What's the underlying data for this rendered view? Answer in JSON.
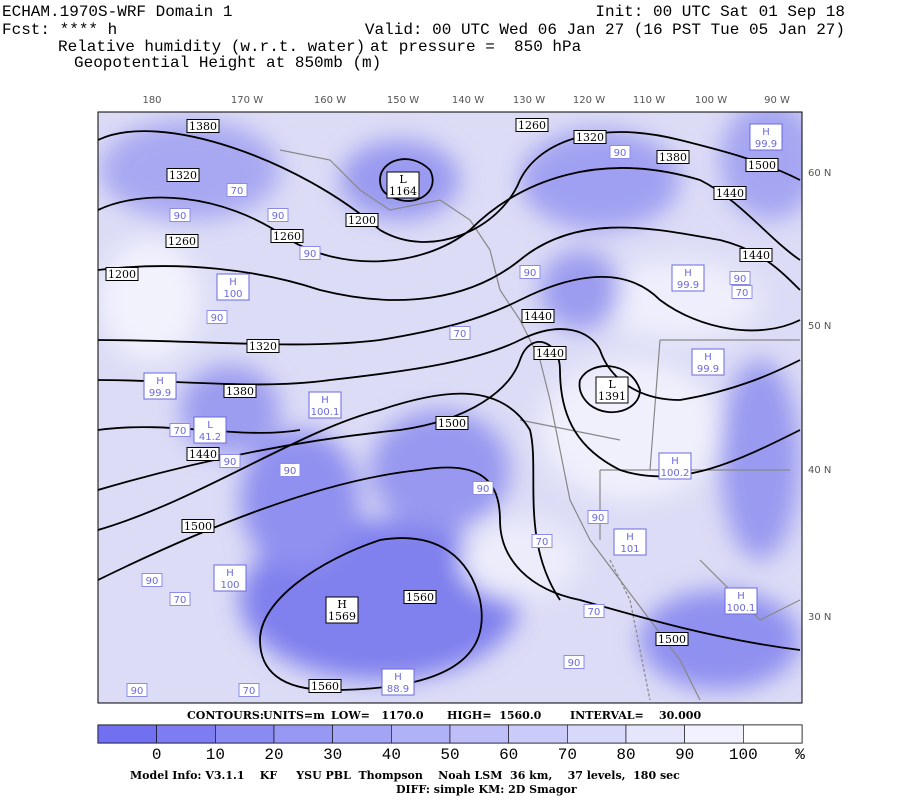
{
  "header": {
    "model": "ECHAM.1970S-WRF Domain 1",
    "init": "Init: 00 UTC Sat 01 Sep 18",
    "fcst": "Fcst: **** h",
    "valid": "Valid: 00 UTC Wed 06 Jan 27 (16 PST Tue 05 Jan 27)",
    "field1": "Relative humidity (w.r.t. water)",
    "pressure": "at pressure =  850 hPa",
    "field2": "Geopotential Height at 850mb (m)"
  },
  "map": {
    "longitudes": [
      "180",
      "170 W",
      "160 W",
      "150 W",
      "140 W",
      "130 W",
      "120 W",
      "110 W",
      "100 W",
      "90 W"
    ],
    "latitudes": [
      "60 N",
      "50 N",
      "40 N",
      "30 N"
    ],
    "contour_labels": [
      "1380",
      "1260",
      "1320",
      "1380",
      "1500",
      "1320",
      "1440",
      "1200",
      "1260",
      "1260",
      "1440",
      "1200",
      "1440",
      "1320",
      "1440",
      "1380",
      "1500",
      "1440",
      "1500",
      "1560",
      "1500",
      "1560"
    ],
    "extrema": [
      {
        "symbol": "L",
        "value": "1164"
      },
      {
        "symbol": "L",
        "value": "1391"
      },
      {
        "symbol": "H",
        "value": "1569"
      },
      {
        "symbol": "H",
        "value": "100"
      },
      {
        "symbol": "H",
        "value": "99.9"
      },
      {
        "symbol": "H",
        "value": "99.9"
      },
      {
        "symbol": "H",
        "value": "100.1"
      },
      {
        "symbol": "L",
        "value": "41.2"
      },
      {
        "symbol": "H",
        "value": "99.9"
      },
      {
        "symbol": "H",
        "value": "100.2"
      },
      {
        "symbol": "H",
        "value": "101"
      },
      {
        "symbol": "H",
        "value": "100"
      },
      {
        "symbol": "H",
        "value": "100.1"
      },
      {
        "symbol": "H",
        "value": "99.9"
      },
      {
        "symbol": "H",
        "value": "88.9"
      }
    ],
    "rh_labels": [
      "70",
      "90",
      "90",
      "90",
      "90",
      "70",
      "90",
      "90",
      "70",
      "90",
      "90",
      "90",
      "70",
      "90",
      "90",
      "70",
      "90",
      "70",
      "90",
      "70",
      "90",
      "70"
    ]
  },
  "colorbar": {
    "ticks": [
      "0",
      "10",
      "20",
      "30",
      "40",
      "50",
      "60",
      "70",
      "80",
      "90",
      "100"
    ],
    "unit": "%"
  },
  "footer": {
    "contours": "CONTOURS:",
    "units": "UNITS=m",
    "low": "LOW=   1170.0",
    "high": "HIGH=  1560.0",
    "interval": "INTERVAL=    30.000",
    "model_info": "Model Info: V3.1.1    KF     YSU PBL  Thompson    Noah LSM  36 km,    37 levels,  180 sec",
    "diff": "DIFF: simple KM: 2D Smagor"
  }
}
